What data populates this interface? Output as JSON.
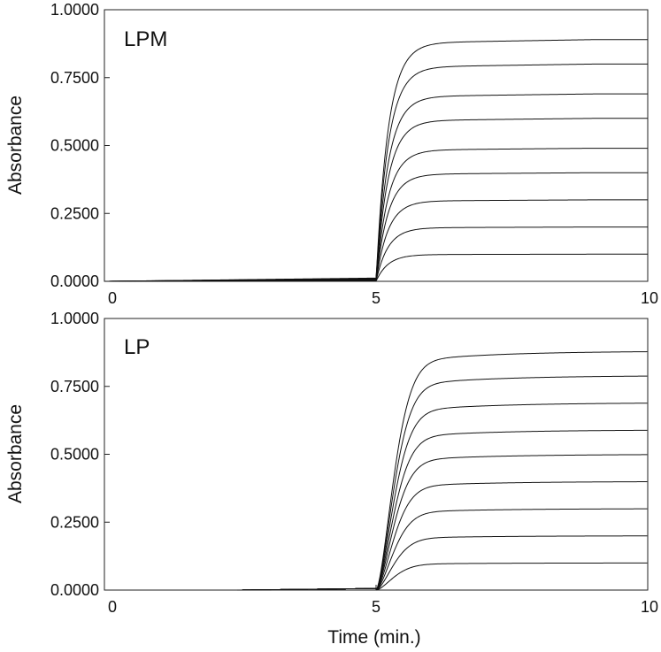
{
  "chart_data": [
    {
      "type": "line",
      "title": "",
      "panel_label": "LPM",
      "xlabel": "",
      "ylabel": "Absorbance",
      "xlim": [
        0,
        10
      ],
      "ylim": [
        0,
        1
      ],
      "x_ticks": [
        "0",
        "5",
        "10"
      ],
      "y_ticks": [
        "0.0000",
        "0.2500",
        "0.5000",
        "0.7500",
        "1.0000"
      ],
      "grid": false,
      "step_time": 5.0,
      "series": [
        {
          "plateau": 0.1
        },
        {
          "plateau": 0.2
        },
        {
          "plateau": 0.3
        },
        {
          "plateau": 0.4
        },
        {
          "plateau": 0.49
        },
        {
          "plateau": 0.6
        },
        {
          "plateau": 0.69
        },
        {
          "plateau": 0.8
        },
        {
          "plateau": 0.89
        }
      ]
    },
    {
      "type": "line",
      "title": "",
      "panel_label": "LP",
      "xlabel": "Time (min.)",
      "ylabel": "Absorbance",
      "xlim": [
        0,
        10
      ],
      "ylim": [
        0,
        1
      ],
      "x_ticks": [
        "0",
        "5",
        "10"
      ],
      "y_ticks": [
        "0.0000",
        "0.2500",
        "0.5000",
        "0.7500",
        "1.0000"
      ],
      "grid": false,
      "step_time": 5.0,
      "series": [
        {
          "plateau": 0.1
        },
        {
          "plateau": 0.2
        },
        {
          "plateau": 0.3
        },
        {
          "plateau": 0.4
        },
        {
          "plateau": 0.5
        },
        {
          "plateau": 0.59
        },
        {
          "plateau": 0.69
        },
        {
          "plateau": 0.79
        },
        {
          "plateau": 0.88
        }
      ]
    }
  ]
}
